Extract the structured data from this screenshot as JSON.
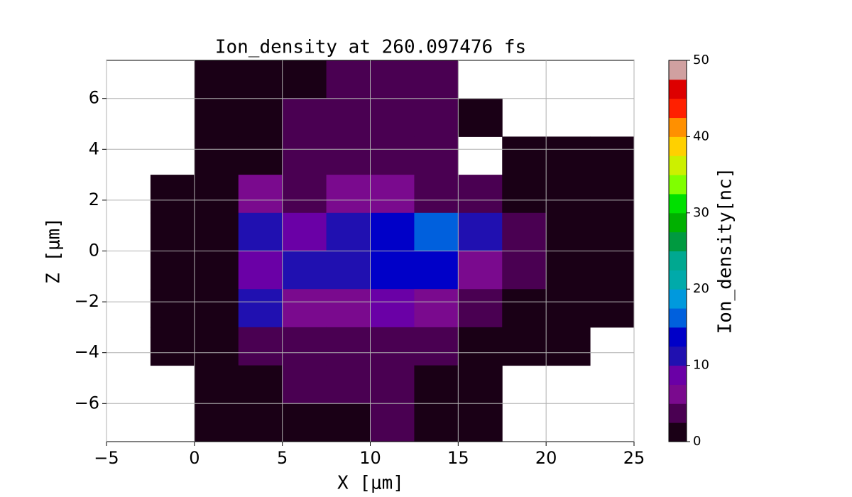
{
  "chart_data": {
    "type": "contour",
    "title": "Ion_density at 260.097476 fs",
    "xlabel": "X [μm]",
    "ylabel": "Z [μm]",
    "colorbar_label": "Ion_density[nc]",
    "xlim": [
      -5,
      25
    ],
    "xticks": [
      {
        "value": -5,
        "label": "−5"
      },
      0,
      5,
      10,
      15,
      20,
      25
    ],
    "ylim": [
      -7.5,
      7.5
    ],
    "yticks": [
      {
        "value": -6,
        "label": "−6"
      },
      {
        "value": -4,
        "label": "−4"
      },
      {
        "value": -2,
        "label": "−2"
      },
      0,
      2,
      4,
      6
    ],
    "clim": [
      0,
      50
    ],
    "cticks": [
      0,
      10,
      20,
      30,
      40,
      50
    ],
    "grid": true,
    "colors": [
      "#1a0016",
      "#4a0052",
      "#7a0a8e",
      "#6a00a6",
      "#2010b0",
      "#0000c8",
      "#0060dd",
      "#0099dd",
      "#00aaaa",
      "#00a890",
      "#009a40",
      "#00b000",
      "#00e000",
      "#80ff00",
      "#ccf000",
      "#ffd000",
      "#ff9000",
      "#ff2000",
      "#dd0000",
      "#d0a0a0"
    ],
    "x": [
      -3.75,
      -1.25,
      1.25,
      3.75,
      6.25,
      8.75,
      11.25,
      13.75,
      16.25,
      18.75,
      21.25,
      23.75
    ],
    "y": [
      6.75,
      5.25,
      3.75,
      2.25,
      0.75,
      -0.75,
      -2.25,
      -3.75,
      -5.25,
      -6.75
    ],
    "z": [
      [
        null,
        null,
        1,
        2,
        2,
        3,
        3,
        3,
        null,
        null,
        null,
        null
      ],
      [
        null,
        null,
        1,
        2,
        3,
        3,
        3,
        4,
        2,
        null,
        null,
        null
      ],
      [
        null,
        null,
        1,
        2,
        3,
        4,
        4,
        3,
        null,
        1,
        1,
        1
      ],
      [
        null,
        0.5,
        2,
        6,
        4,
        6,
        5,
        4,
        3,
        2,
        1,
        1
      ],
      [
        null,
        0.5,
        2,
        12,
        8,
        10,
        14,
        16,
        10,
        3,
        1,
        1
      ],
      [
        null,
        0.5,
        2,
        8,
        10,
        12,
        14,
        14,
        5,
        3,
        1,
        1
      ],
      [
        null,
        0.5,
        2,
        12,
        5,
        6,
        8,
        5,
        3,
        1,
        1,
        1
      ],
      [
        null,
        0.5,
        1,
        3,
        3,
        3,
        3,
        3,
        1,
        1,
        1,
        null
      ],
      [
        null,
        null,
        1,
        2,
        3,
        3,
        3,
        2,
        1,
        null,
        null,
        null
      ],
      [
        null,
        null,
        1,
        2,
        2,
        2,
        3,
        2,
        1,
        null,
        null,
        null
      ]
    ]
  }
}
